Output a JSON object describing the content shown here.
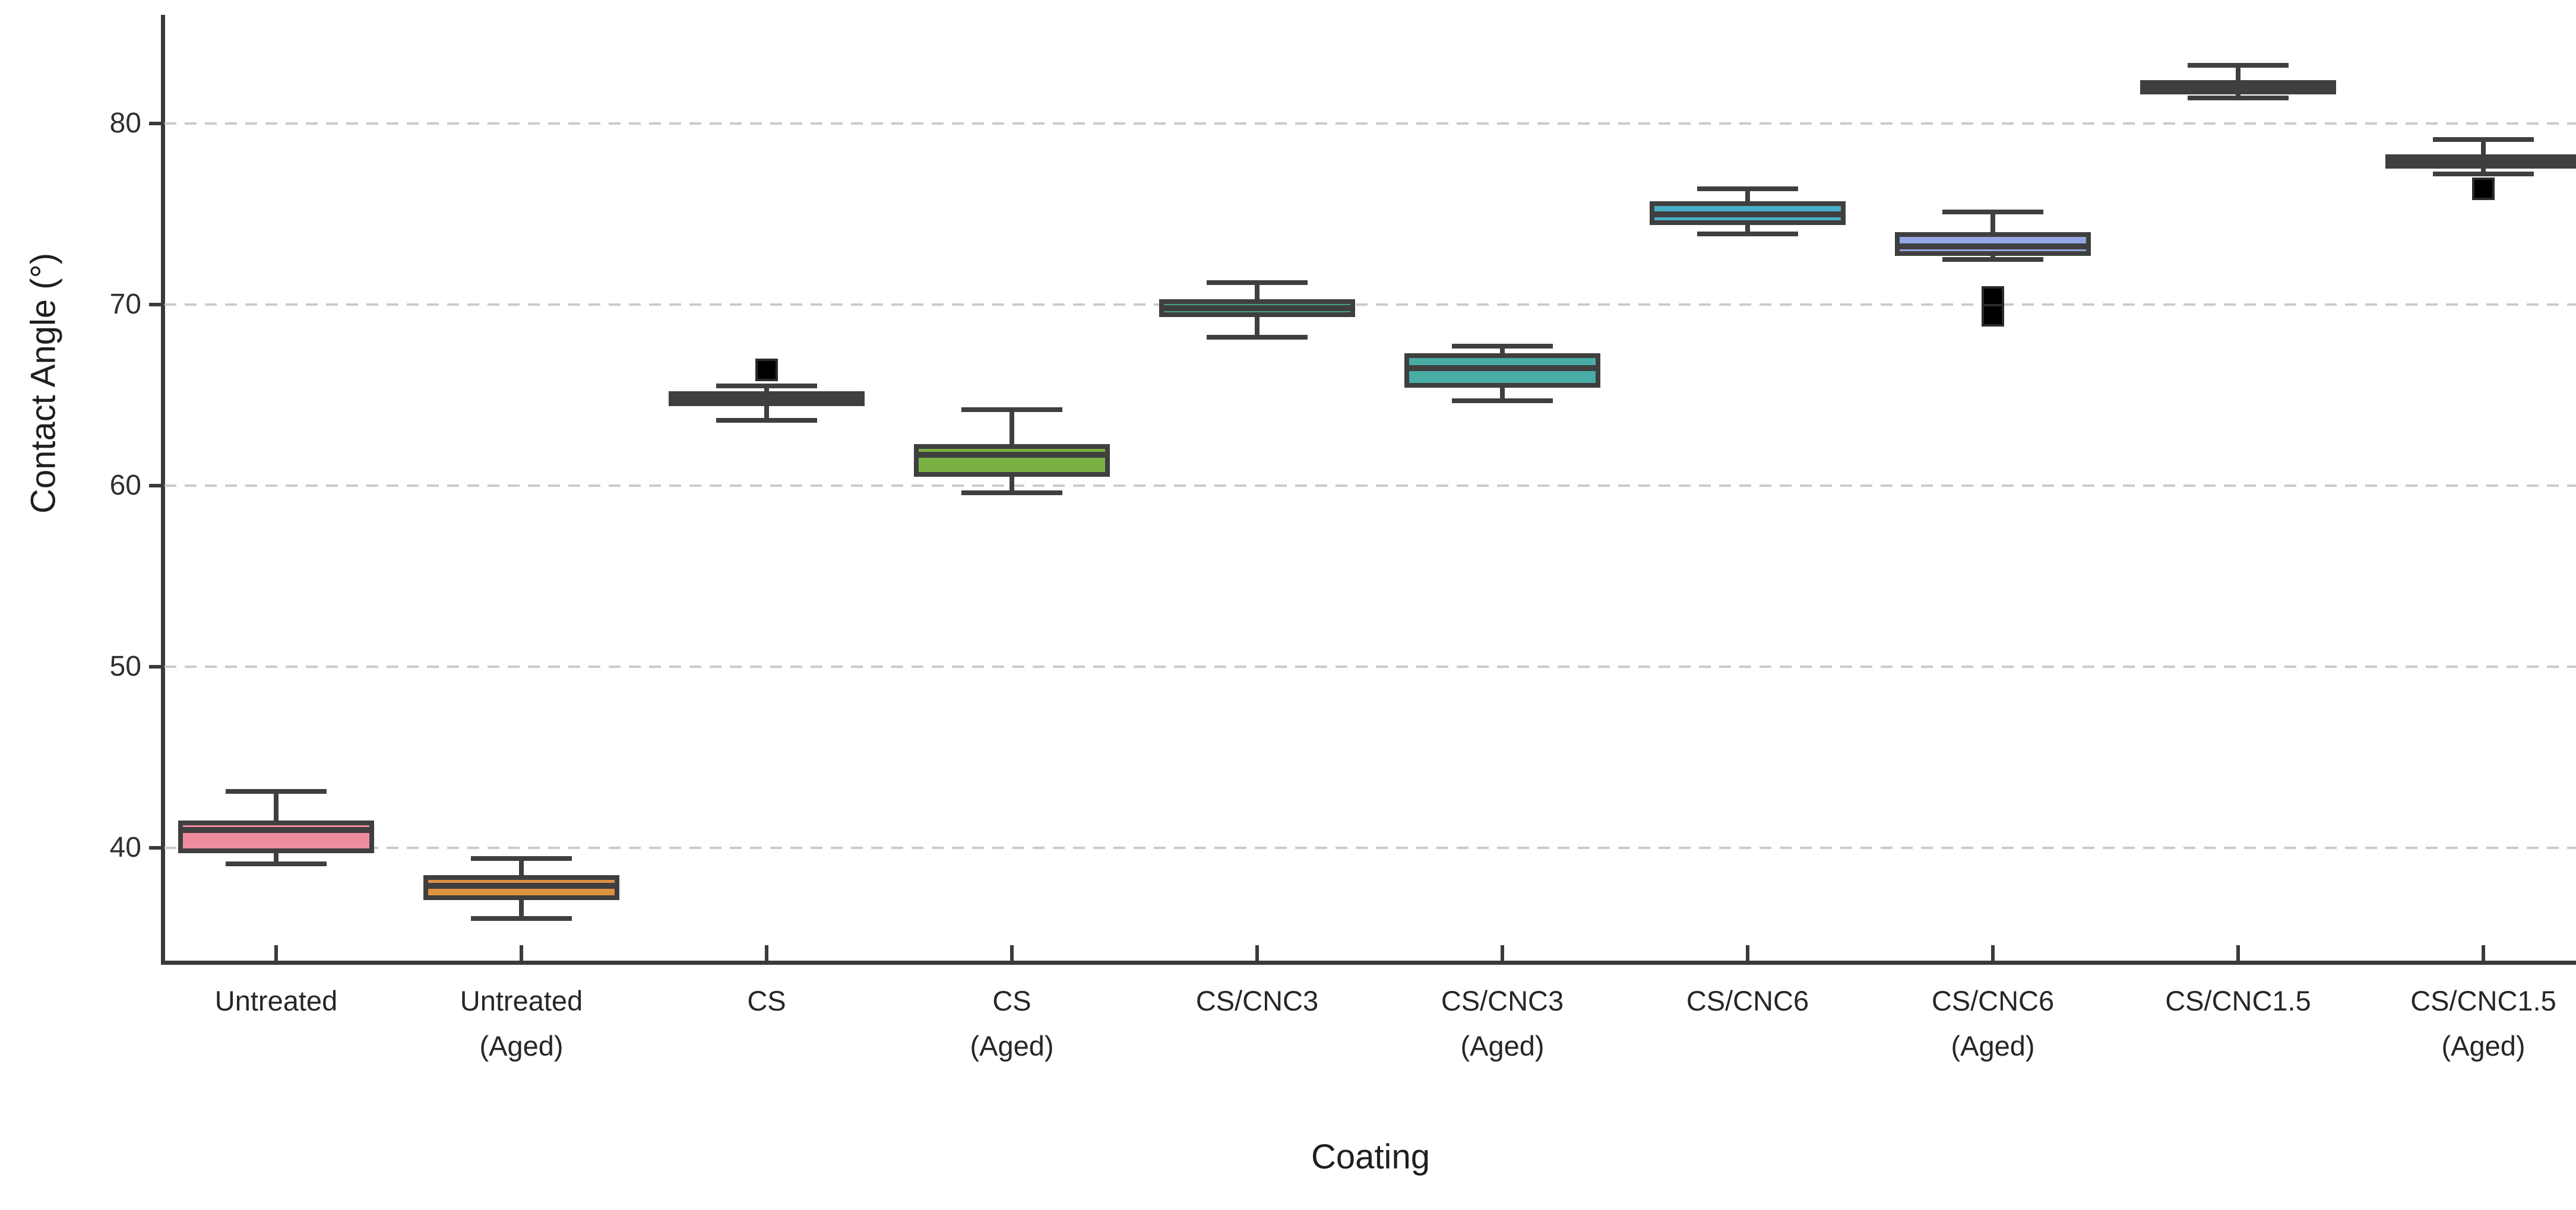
{
  "figure": {
    "background": "#ffffff",
    "spine_color": "#3a3a3a",
    "gridline_color": "#cbcbcb",
    "box_border_color": "#3f3f3f",
    "outlier_color": "#000000"
  },
  "chart_data": {
    "type": "box",
    "title": "",
    "xlabel": "Coating",
    "ylabel": "Contact Angle (°)",
    "ylim": [
      34,
      86
    ],
    "yticks": [
      40,
      50,
      60,
      70,
      80
    ],
    "yticklabels": [
      "40",
      "50",
      "60",
      "70",
      "80"
    ],
    "grid": "horizontal dashed, light gray",
    "legend_position": "none",
    "tick_direction": "in on x, out on y",
    "categories": [
      "Untreated",
      "Untreated (Aged)",
      "CS",
      "CS (Aged)",
      "CS/CNC3",
      "CS/CNC3 (Aged)",
      "CS/CNC6",
      "CS/CNC6 (Aged)",
      "CS/CNC1.5",
      "CS/CNC1.5 (Aged)"
    ],
    "series": [
      {
        "name": "Untreated",
        "color": "#EF8CA0",
        "whisker_low": 39.1,
        "q1": 39.7,
        "median": 41.0,
        "q3": 41.5,
        "whisker_high": 43.1,
        "outliers": []
      },
      {
        "name": "Untreated (Aged)",
        "color": "#DE9240",
        "whisker_low": 36.1,
        "q1": 37.1,
        "median": 37.9,
        "q3": 38.5,
        "whisker_high": 39.4,
        "outliers": []
      },
      {
        "name": "CS",
        "color": "#A89F4B",
        "whisker_low": 63.6,
        "q1": 64.4,
        "median": 64.8,
        "q3": 65.2,
        "whisker_high": 65.5,
        "outliers": [
          66.4
        ]
      },
      {
        "name": "CS (Aged)",
        "color": "#7AB143",
        "whisker_low": 59.6,
        "q1": 60.5,
        "median": 61.7,
        "q3": 62.3,
        "whisker_high": 64.2,
        "outliers": []
      },
      {
        "name": "CS/CNC3",
        "color": "#48A17D",
        "whisker_low": 68.2,
        "q1": 69.3,
        "median": 69.8,
        "q3": 70.3,
        "whisker_high": 71.2,
        "outliers": []
      },
      {
        "name": "CS/CNC3 (Aged)",
        "color": "#49ACA5",
        "whisker_low": 64.7,
        "q1": 65.4,
        "median": 66.5,
        "q3": 67.3,
        "whisker_high": 67.7,
        "outliers": []
      },
      {
        "name": "CS/CNC6",
        "color": "#4AADC9",
        "whisker_low": 73.9,
        "q1": 74.4,
        "median": 75.0,
        "q3": 75.7,
        "whisker_high": 76.4,
        "outliers": []
      },
      {
        "name": "CS/CNC6 (Aged)",
        "color": "#95A6E4",
        "whisker_low": 72.5,
        "q1": 72.7,
        "median": 73.2,
        "q3": 74.0,
        "whisker_high": 75.1,
        "outliers": [
          70.4,
          69.4
        ]
      },
      {
        "name": "CS/CNC1.5",
        "color": "#BA92D2",
        "whisker_low": 81.4,
        "q1": 81.6,
        "median": 82.0,
        "q3": 82.4,
        "whisker_high": 83.2,
        "outliers": []
      },
      {
        "name": "CS/CNC1.5 (Aged)",
        "color": "#B2799E",
        "whisker_low": 77.2,
        "q1": 77.5,
        "median": 77.9,
        "q3": 78.3,
        "whisker_high": 79.1,
        "outliers": [
          76.4
        ]
      }
    ]
  }
}
